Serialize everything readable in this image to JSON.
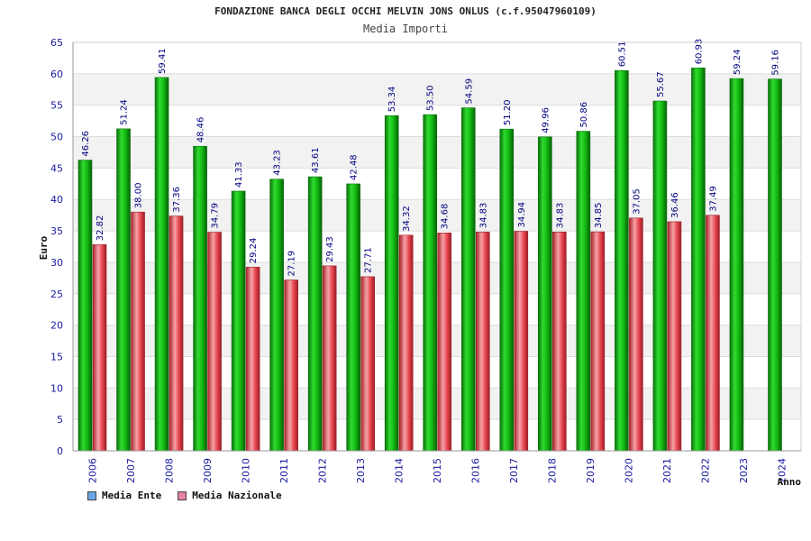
{
  "colors": {
    "ente": "#11b511",
    "ente_dark": "#0a6f0a",
    "nazionale": "#e8444e",
    "nazionale_dark": "#9a1f26",
    "legend_ente": "#6aa6e8",
    "legend_nazionale": "#e87fa4",
    "axis_text": "#1a1aa0",
    "value_text": "#000080"
  },
  "chart_data": {
    "type": "bar",
    "title": "FONDAZIONE BANCA DEGLI OCCHI MELVIN JONS ONLUS (c.f.95047960109)",
    "subtitle": "Media Importi",
    "xlabel": "Anno",
    "ylabel": "Euro",
    "ylim": [
      0,
      65
    ],
    "yticks": [
      "0",
      "5",
      "10",
      "15",
      "20",
      "25",
      "30",
      "35",
      "40",
      "45",
      "50",
      "55",
      "60",
      "65"
    ],
    "categories": [
      "2006",
      "2007",
      "2008",
      "2009",
      "2010",
      "2011",
      "2012",
      "2013",
      "2014",
      "2015",
      "2016",
      "2017",
      "2018",
      "2019",
      "2020",
      "2021",
      "2022",
      "2023",
      "2024"
    ],
    "series": [
      {
        "name": "Media Ente",
        "values": [
          46.26,
          51.24,
          59.41,
          48.46,
          41.33,
          43.23,
          43.61,
          42.48,
          53.34,
          53.5,
          54.59,
          51.2,
          49.96,
          50.86,
          60.51,
          55.67,
          60.93,
          59.24,
          59.16
        ],
        "labels": [
          "46.26",
          "51.24",
          "59.41",
          "48.46",
          "41.33",
          "43.23",
          "43.61",
          "42.48",
          "53.34",
          "53.50",
          "54.59",
          "51.20",
          "49.96",
          "50.86",
          "60.51",
          "55.67",
          "60.93",
          "59.24",
          "59.16"
        ]
      },
      {
        "name": "Media Nazionale",
        "values": [
          32.82,
          38.0,
          37.36,
          34.79,
          29.24,
          27.19,
          29.43,
          27.71,
          34.32,
          34.68,
          34.83,
          34.94,
          34.83,
          34.85,
          37.05,
          36.46,
          37.49,
          null,
          null
        ],
        "labels": [
          "32.82",
          "38.00",
          "37.36",
          "34.79",
          "29.24",
          "27.19",
          "29.43",
          "27.71",
          "34.32",
          "34.68",
          "34.83",
          "34.94",
          "34.83",
          "34.85",
          "37.05",
          "36.46",
          "37.49",
          null,
          null
        ]
      }
    ],
    "grid": true,
    "legend_position": "bottom-left"
  }
}
